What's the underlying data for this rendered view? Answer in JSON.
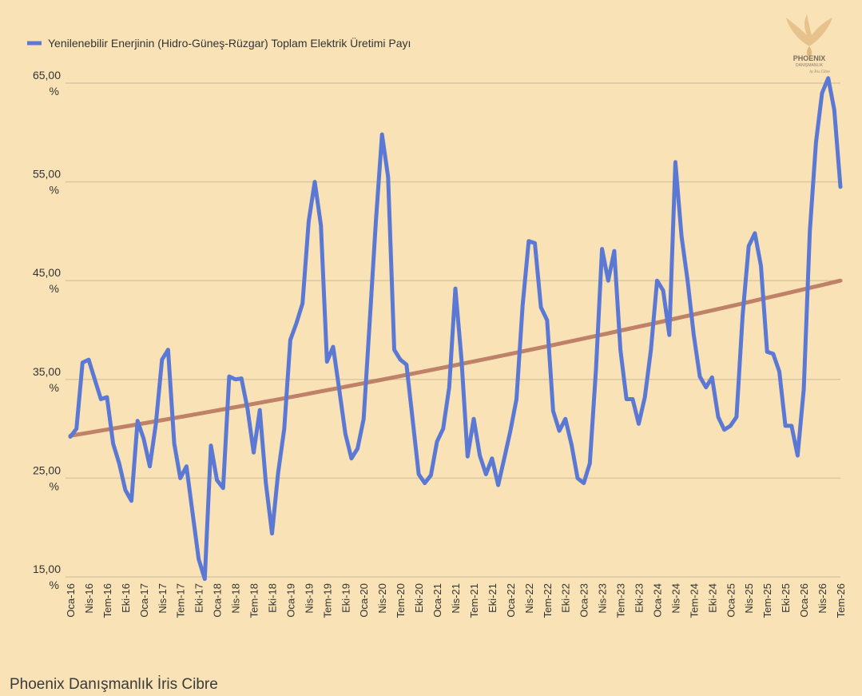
{
  "legend": {
    "label": "Yenilenebilir Enerjinin (Hidro-Güneş-Rüzgar) Toplam Elektrik Üretimi Payı"
  },
  "footer": {
    "text": "Phoenix Danışmanlık İris Cibre"
  },
  "logo": {
    "name": "PHOENIX",
    "subtitle": "DANIŞMANLIK",
    "signature": "by İris Cibre"
  },
  "colors": {
    "background": "#f9e3b6",
    "series": "#5b78d4",
    "trend": "#b5715a",
    "grid": "#d9c7a3"
  },
  "chart_data": {
    "type": "line",
    "ylim": [
      15,
      65
    ],
    "yticks": [
      {
        "value": 15,
        "label": "15,00",
        "unit": "%"
      },
      {
        "value": 25,
        "label": "25,00",
        "unit": "%"
      },
      {
        "value": 35,
        "label": "35,00",
        "unit": "%"
      },
      {
        "value": 45,
        "label": "45,00",
        "unit": "%"
      },
      {
        "value": 55,
        "label": "55,00",
        "unit": "%"
      },
      {
        "value": 65,
        "label": "65,00",
        "unit": "%"
      }
    ],
    "xticks": [
      {
        "index": 0,
        "label": "Oca-16"
      },
      {
        "index": 3,
        "label": "Nis-16"
      },
      {
        "index": 6,
        "label": "Tem-16"
      },
      {
        "index": 9,
        "label": "Eki-16"
      },
      {
        "index": 12,
        "label": "Oca-17"
      },
      {
        "index": 15,
        "label": "Nis-17"
      },
      {
        "index": 18,
        "label": "Tem-17"
      },
      {
        "index": 21,
        "label": "Eki-17"
      },
      {
        "index": 24,
        "label": "Oca-18"
      },
      {
        "index": 27,
        "label": "Nis-18"
      },
      {
        "index": 30,
        "label": "Tem-18"
      },
      {
        "index": 33,
        "label": "Eki-18"
      },
      {
        "index": 36,
        "label": "Oca-19"
      },
      {
        "index": 39,
        "label": "Nis-19"
      },
      {
        "index": 42,
        "label": "Tem-19"
      },
      {
        "index": 45,
        "label": "Eki-19"
      },
      {
        "index": 48,
        "label": "Oca-20"
      },
      {
        "index": 51,
        "label": "Nis-20"
      },
      {
        "index": 54,
        "label": "Tem-20"
      },
      {
        "index": 57,
        "label": "Eki-20"
      },
      {
        "index": 60,
        "label": "Oca-21"
      },
      {
        "index": 63,
        "label": "Nis-21"
      },
      {
        "index": 66,
        "label": "Tem-21"
      },
      {
        "index": 69,
        "label": "Eki-21"
      },
      {
        "index": 72,
        "label": "Oca-22"
      },
      {
        "index": 75,
        "label": "Nis-22"
      },
      {
        "index": 78,
        "label": "Tem-22"
      },
      {
        "index": 81,
        "label": "Eki-22"
      },
      {
        "index": 84,
        "label": "Oca-23"
      },
      {
        "index": 87,
        "label": "Nis-23"
      },
      {
        "index": 90,
        "label": "Tem-23"
      },
      {
        "index": 93,
        "label": "Eki-23"
      },
      {
        "index": 96,
        "label": "Oca-24"
      },
      {
        "index": 99,
        "label": "Nis-24"
      },
      {
        "index": 102,
        "label": "Tem-24"
      },
      {
        "index": 105,
        "label": "Eki-24"
      },
      {
        "index": 108,
        "label": "Oca-25"
      },
      {
        "index": 111,
        "label": "Nis-25"
      },
      {
        "index": 114,
        "label": "Tem-25"
      },
      {
        "index": 117,
        "label": "Eki-25"
      },
      {
        "index": 120,
        "label": "Oca-26"
      },
      {
        "index": 123,
        "label": "Nis-26"
      },
      {
        "index": 126,
        "label": "Tem-26"
      }
    ],
    "grid": true,
    "legend_position": "top-left",
    "series": [
      {
        "name": "Yenilenebilir Enerjinin (Hidro-Güneş-Rüzgar) Toplam Elektrik Üretimi Payı",
        "values": [
          29.2,
          30.0,
          36.7,
          37.0,
          35.0,
          33.0,
          33.2,
          28.5,
          26.5,
          23.8,
          22.7,
          30.8,
          29.0,
          26.2,
          30.5,
          37.0,
          38.0,
          28.5,
          25.0,
          26.2,
          21.5,
          16.8,
          14.8,
          28.3,
          24.8,
          24.0,
          35.3,
          35.0,
          35.1,
          32.0,
          27.6,
          31.9,
          24.5,
          19.4,
          25.5,
          30.0,
          39.0,
          40.7,
          42.7,
          51.0,
          55.0,
          50.6,
          36.8,
          38.3,
          34.0,
          29.5,
          27.0,
          28.0,
          31.0,
          41.0,
          51.0,
          59.8,
          55.5,
          38.0,
          37.0,
          36.5,
          31.0,
          25.4,
          24.5,
          25.3,
          28.7,
          30.0,
          34.2,
          44.2,
          37.0,
          27.2,
          31.0,
          27.3,
          25.4,
          27.0,
          24.3,
          27.0,
          29.8,
          33.0,
          42.5,
          49.0,
          48.8,
          42.3,
          41.0,
          31.8,
          29.8,
          31.0,
          28.4,
          25.0,
          24.5,
          26.5,
          36.0,
          48.2,
          45.0,
          48.0,
          38.0,
          33.0,
          33.0,
          30.5,
          33.2,
          38.0,
          45.0,
          44.0,
          39.5,
          57.0,
          49.5,
          45.0,
          39.5,
          35.3,
          34.2,
          35.2,
          31.2,
          29.9,
          30.3,
          31.2,
          41.5,
          48.5,
          49.8,
          46.5,
          37.8,
          37.6,
          35.8,
          30.3,
          30.3,
          27.3,
          34.0,
          50.0,
          59.0,
          64.0,
          65.5,
          62.3,
          54.5
        ]
      },
      {
        "name": "",
        "values": [
          29.3,
          45.0
        ]
      }
    ]
  }
}
